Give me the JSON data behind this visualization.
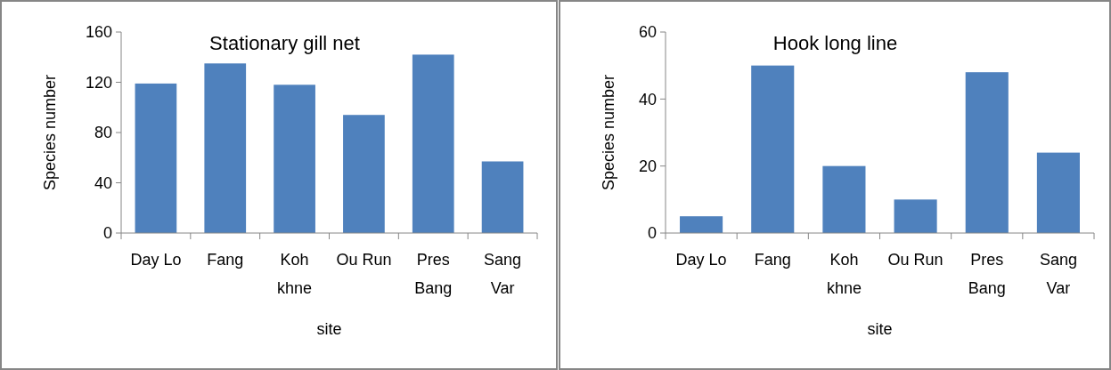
{
  "chart_data": [
    {
      "type": "bar",
      "title": "Stationary gill net",
      "xlabel": "site",
      "ylabel": "Species number",
      "categories": [
        "Day Lo",
        "Fang",
        "Koh khne",
        "Ou Run",
        "Pres Bang",
        "Sang Var"
      ],
      "values": [
        119,
        135,
        118,
        94,
        142,
        57
      ],
      "color": "#4f81bd",
      "ylim": [
        0,
        160
      ],
      "yticks": [
        0,
        40,
        80,
        120,
        160
      ],
      "grid": false
    },
    {
      "type": "bar",
      "title": "Hook long line",
      "xlabel": "site",
      "ylabel": "Species number",
      "categories": [
        "Day Lo",
        "Fang",
        "Koh khne",
        "Ou Run",
        "Pres Bang",
        "Sang Var"
      ],
      "values": [
        5,
        50,
        20,
        10,
        48,
        24
      ],
      "color": "#4f81bd",
      "ylim": [
        0,
        60
      ],
      "yticks": [
        0,
        20,
        40,
        60
      ],
      "grid": false
    }
  ]
}
